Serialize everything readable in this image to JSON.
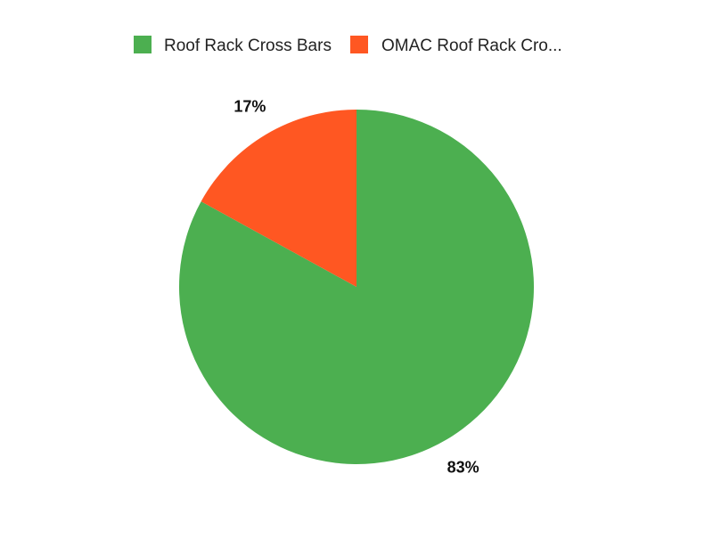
{
  "chart_data": {
    "type": "pie",
    "categories": [
      "Roof Rack Cross Bars",
      "OMAC Roof Rack Cro..."
    ],
    "values": [
      83,
      17
    ],
    "value_labels": [
      "83%",
      "17%"
    ],
    "colors": [
      "#4caf50",
      "#ff5722"
    ],
    "legend": {
      "placement": "top-center",
      "entries": [
        "Roof Rack Cross Bars",
        "OMAC Roof Rack Cro..."
      ]
    },
    "title": ""
  }
}
